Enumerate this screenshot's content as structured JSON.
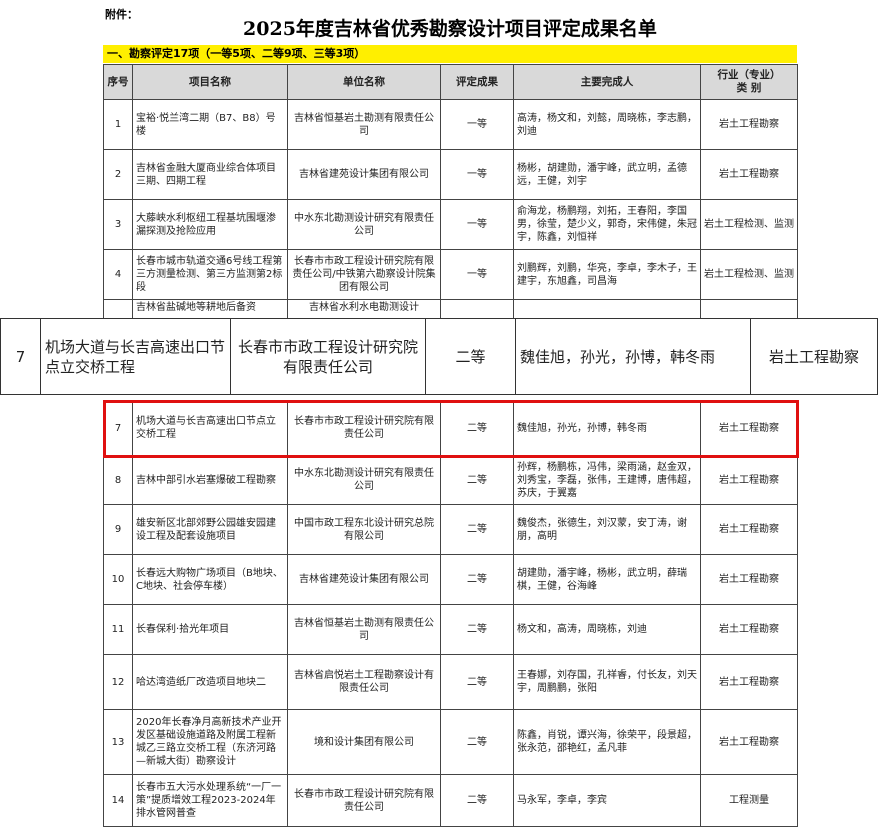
{
  "header": {
    "attachment": "附件：",
    "title": "2025年度吉林省优秀勘察设计项目评定成果名单"
  },
  "section": "一、勘察评定17项（一等5项、二等9项、三等3项）",
  "table": {
    "columns": [
      "序号",
      "项目名称",
      "单位名称",
      "评定成果",
      "主要完成人",
      "行业（专业）\n类  别"
    ],
    "rows_top": [
      [
        1,
        "宝裕·悦兰湾二期（B7、B8）号楼",
        "吉林省恒基岩土勘测有限责任公司",
        "一等",
        "高涛，杨文和，刘懿，周晓栋，李志鹏，刘迪",
        "岩土工程勘察"
      ],
      [
        2,
        "吉林省金融大厦商业综合体项目三期、四期工程",
        "吉林省建苑设计集团有限公司",
        "一等",
        "杨彬，胡建勋，潘宇峰，武立明，孟德远，王健，刘宇",
        "岩土工程勘察"
      ],
      [
        3,
        "大藤峡水利枢纽工程基坑围堰渗漏探测及抢险应用",
        "中水东北勘测设计研究有限责任公司",
        "一等",
        "俞海龙，杨鹏翔，刘拓，王春阳，李国男，徐莹，楚少义，郭奇，宋伟健，朱冠宇，陈鑫，刘恒祥",
        "岩土工程检测、监测"
      ],
      [
        4,
        "长春市城市轨道交通6号线工程第三方测量检测、第三方监测第2标段",
        "长春市市政工程设计研究院有限责任公司/中铁第六勘察设计院集团有限公司",
        "一等",
        "刘鹏辉，刘鹏，华亮，李卓，李木子，王建宇，东旭鑫，司昌海",
        "岩土工程检测、监测"
      ]
    ],
    "partial_row": {
      "name": "吉林省盐碱地等耕地后备资",
      "unit": "吉林省水利水电勘测设计"
    },
    "rows_bottom": [
      [
        7,
        "机场大道与长吉高速出口节点立交桥工程",
        "长春市市政工程设计研究院有限责任公司",
        "二等",
        "魏佳旭，孙光，孙博，韩冬雨",
        "岩土工程勘察"
      ],
      [
        8,
        "吉林中部引水岩塞爆破工程勘察",
        "中水东北勘测设计研究有限责任公司",
        "二等",
        "孙辉，杨鹏栋，冯伟，梁雨涵，赵金双，刘秀宝，李磊，张伟，王建博，唐伟超，苏庆，于翼嘉",
        "岩土工程勘察"
      ],
      [
        9,
        "雄安新区北部郊野公园雄安园建设工程及配套设施项目",
        "中国市政工程东北设计研究总院有限公司",
        "二等",
        "魏俊杰，张德生，刘汉蒙，安丁涛，谢朋，高明",
        "岩土工程勘察"
      ],
      [
        10,
        "长春远大购物广场项目（B地块、C地块、社会停车楼）",
        "吉林省建苑设计集团有限公司",
        "二等",
        "胡建勋，潘宇峰，杨彬，武立明，薛瑞棋，王健，谷海峰",
        "岩土工程勘察"
      ],
      [
        11,
        "长春保利·拾光年项目",
        "吉林省恒基岩土勘测有限责任公司",
        "二等",
        "杨文和，高涛，周晓栋，刘迪",
        "岩土工程勘察"
      ],
      [
        12,
        "哈达湾造纸厂改造项目地块二",
        "吉林省启悦岩土工程勘察设计有限责任公司",
        "二等",
        "王春娜，刘存国，孔祥睿，付长友，刘天宇，周鹏鹏，张阳",
        "岩土工程勘察"
      ],
      [
        13,
        "2020年长春净月高新技术产业开发区基础设施道路及附属工程新城乙三路立交桥工程（东济河路—新城大街）勘察设计",
        "境和设计集团有限公司",
        "二等",
        "陈鑫，肖锐，谭兴海，徐荣平，段景超，张永范，邵艳红，孟凡菲",
        "岩土工程勘察"
      ],
      [
        14,
        "长春市五大污水处理系统“一厂一策”提质增效工程2023-2024年排水管网普查",
        "长春市市政工程设计研究院有限责任公司",
        "二等",
        "马永军，李卓，李宾",
        "工程测量"
      ]
    ]
  },
  "zoom": {
    "row": [
      7,
      "机场大道与长吉高速出口节点立交桥工程",
      "长春市市政工程设计研究院有限责任公司",
      "二等",
      "魏佳旭，孙光，孙博，韩冬雨",
      "岩土工程勘察"
    ]
  }
}
